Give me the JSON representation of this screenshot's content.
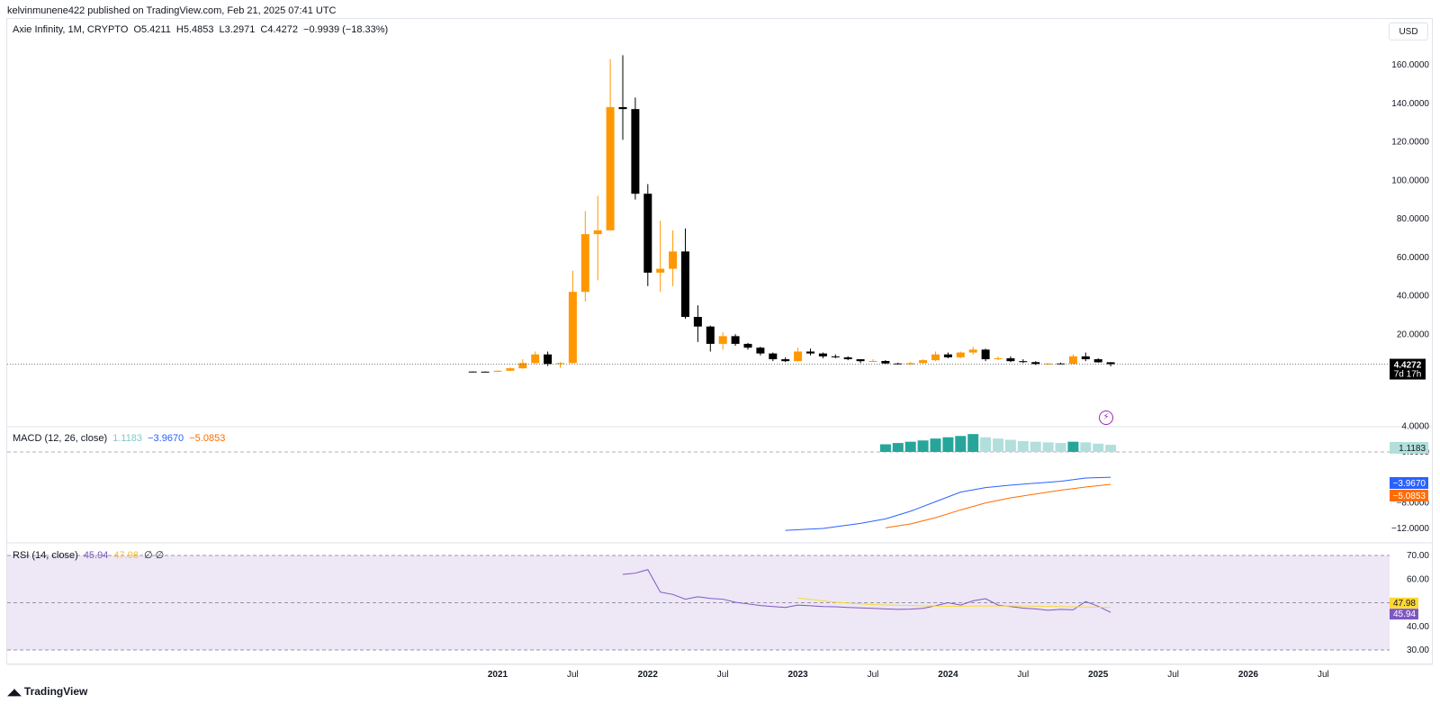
{
  "header": {
    "publisher_line": "kelvinmunene422 published on TradingView.com, Feb 21, 2025 07:41 UTC"
  },
  "legend": {
    "title": "Axie Infinity, 1M, CRYPTO",
    "open": "O5.4211",
    "high": "H5.4853",
    "low": "L3.2971",
    "close": "C4.4272",
    "change": "−0.9939 (−18.33%)"
  },
  "currency_button": "USD",
  "price_axis": {
    "ticks": [
      "160.0000",
      "140.0000",
      "120.0000",
      "100.0000",
      "80.0000",
      "60.0000",
      "40.0000",
      "20.0000"
    ],
    "last_price": "4.4272",
    "countdown": "7d 17h"
  },
  "macd": {
    "label": "MACD (12, 26, close)",
    "hist_value": "1.1183",
    "macd_value": "−3.9670",
    "signal_value": "−5.0853",
    "axis_ticks": [
      "4.0000",
      "0.0000",
      "−8.0000",
      "−12.0000"
    ]
  },
  "rsi": {
    "label": "RSI (14, close)",
    "rsi_value": "45.94",
    "ma_value": "47.98",
    "extra": "∅ ∅",
    "axis_ticks": [
      "70.00",
      "60.00",
      "40.00",
      "30.00"
    ]
  },
  "time_axis": [
    "2021",
    "Jul",
    "2022",
    "Jul",
    "2023",
    "Jul",
    "2024",
    "Jul",
    "2025",
    "Jul",
    "2026",
    "Jul"
  ],
  "footer": {
    "logo_text": "TradingView"
  },
  "colors": {
    "up": "#ff9800",
    "down": "#000000",
    "macd": "#2962ff",
    "signal": "#ff6d00",
    "hist_strong": "#26a69a",
    "hist_weak": "#b2dfdb",
    "rsi": "#7e57c2",
    "rsi_ma": "#fdd835",
    "rsi_band": "#ede7f6"
  },
  "chart_data": [
    {
      "type": "candlestick",
      "title": "Axie Infinity, 1M, CRYPTO",
      "ylim": [
        -10,
        170
      ],
      "candles": [
        {
          "t": "2020-11",
          "o": 0.6,
          "h": 0.7,
          "l": 0.5,
          "c": 0.55
        },
        {
          "t": "2020-12",
          "o": 0.55,
          "h": 0.65,
          "l": 0.45,
          "c": 0.5
        },
        {
          "t": "2021-01",
          "o": 0.5,
          "h": 1.2,
          "l": 0.45,
          "c": 1.0
        },
        {
          "t": "2021-02",
          "o": 1.0,
          "h": 2.8,
          "l": 0.9,
          "c": 2.3
        },
        {
          "t": "2021-03",
          "o": 2.3,
          "h": 7.0,
          "l": 2.0,
          "c": 5.0
        },
        {
          "t": "2021-04",
          "o": 5.0,
          "h": 11.0,
          "l": 4.5,
          "c": 9.5
        },
        {
          "t": "2021-05",
          "o": 9.5,
          "h": 11.0,
          "l": 3.5,
          "c": 4.5
        },
        {
          "t": "2021-06",
          "o": 4.5,
          "h": 5.5,
          "l": 2.5,
          "c": 5.0
        },
        {
          "t": "2021-07",
          "o": 5.0,
          "h": 53.0,
          "l": 4.8,
          "c": 42.0
        },
        {
          "t": "2021-08",
          "o": 42.0,
          "h": 84.0,
          "l": 37.0,
          "c": 72.0
        },
        {
          "t": "2021-09",
          "o": 72.0,
          "h": 92.0,
          "l": 48.0,
          "c": 74.0
        },
        {
          "t": "2021-10",
          "o": 74.0,
          "h": 163.0,
          "l": 74.0,
          "c": 138.0
        },
        {
          "t": "2021-11",
          "o": 138.0,
          "h": 165.0,
          "l": 121.0,
          "c": 137.0
        },
        {
          "t": "2021-12",
          "o": 137.0,
          "h": 143.0,
          "l": 90.0,
          "c": 93.0
        },
        {
          "t": "2022-01",
          "o": 93.0,
          "h": 98.0,
          "l": 45.0,
          "c": 52.0
        },
        {
          "t": "2022-02",
          "o": 52.0,
          "h": 79.0,
          "l": 42.0,
          "c": 54.0
        },
        {
          "t": "2022-03",
          "o": 54.0,
          "h": 74.0,
          "l": 45.0,
          "c": 63.0
        },
        {
          "t": "2022-04",
          "o": 63.0,
          "h": 75.0,
          "l": 28.0,
          "c": 29.0
        },
        {
          "t": "2022-05",
          "o": 29.0,
          "h": 35.0,
          "l": 16.0,
          "c": 24.0
        },
        {
          "t": "2022-06",
          "o": 24.0,
          "h": 24.5,
          "l": 11.0,
          "c": 15.0
        },
        {
          "t": "2022-07",
          "o": 15.0,
          "h": 21.0,
          "l": 12.0,
          "c": 19.0
        },
        {
          "t": "2022-08",
          "o": 19.0,
          "h": 20.0,
          "l": 14.0,
          "c": 15.0
        },
        {
          "t": "2022-09",
          "o": 15.0,
          "h": 15.5,
          "l": 12.0,
          "c": 13.0
        },
        {
          "t": "2022-10",
          "o": 13.0,
          "h": 13.5,
          "l": 9.0,
          "c": 10.0
        },
        {
          "t": "2022-11",
          "o": 10.0,
          "h": 10.5,
          "l": 6.0,
          "c": 7.0
        },
        {
          "t": "2022-12",
          "o": 7.0,
          "h": 8.0,
          "l": 5.5,
          "c": 6.0
        },
        {
          "t": "2023-01",
          "o": 6.0,
          "h": 13.0,
          "l": 5.8,
          "c": 11.0
        },
        {
          "t": "2023-02",
          "o": 11.0,
          "h": 12.5,
          "l": 9.0,
          "c": 10.0
        },
        {
          "t": "2023-03",
          "o": 10.0,
          "h": 10.5,
          "l": 7.5,
          "c": 8.5
        },
        {
          "t": "2023-04",
          "o": 8.5,
          "h": 9.5,
          "l": 7.5,
          "c": 8.0
        },
        {
          "t": "2023-05",
          "o": 8.0,
          "h": 8.5,
          "l": 6.5,
          "c": 7.0
        },
        {
          "t": "2023-06",
          "o": 7.0,
          "h": 7.0,
          "l": 5.0,
          "c": 6.0
        },
        {
          "t": "2023-07",
          "o": 6.0,
          "h": 7.0,
          "l": 5.5,
          "c": 6.1
        },
        {
          "t": "2023-08",
          "o": 6.1,
          "h": 6.5,
          "l": 4.5,
          "c": 4.8
        },
        {
          "t": "2023-09",
          "o": 4.8,
          "h": 5.2,
          "l": 4.2,
          "c": 4.4
        },
        {
          "t": "2023-10",
          "o": 4.4,
          "h": 5.5,
          "l": 4.1,
          "c": 5.0
        },
        {
          "t": "2023-11",
          "o": 5.0,
          "h": 7.0,
          "l": 4.8,
          "c": 6.5
        },
        {
          "t": "2023-12",
          "o": 6.5,
          "h": 11.0,
          "l": 6.0,
          "c": 9.5
        },
        {
          "t": "2024-01",
          "o": 9.5,
          "h": 10.5,
          "l": 7.5,
          "c": 8.0
        },
        {
          "t": "2024-02",
          "o": 8.0,
          "h": 11.0,
          "l": 7.5,
          "c": 10.5
        },
        {
          "t": "2024-03",
          "o": 10.5,
          "h": 13.5,
          "l": 9.5,
          "c": 12.0
        },
        {
          "t": "2024-04",
          "o": 12.0,
          "h": 12.5,
          "l": 6.0,
          "c": 7.0
        },
        {
          "t": "2024-05",
          "o": 7.0,
          "h": 8.5,
          "l": 6.5,
          "c": 7.5
        },
        {
          "t": "2024-06",
          "o": 7.5,
          "h": 8.5,
          "l": 5.5,
          "c": 6.0
        },
        {
          "t": "2024-07",
          "o": 6.0,
          "h": 7.0,
          "l": 5.0,
          "c": 5.5
        },
        {
          "t": "2024-08",
          "o": 5.5,
          "h": 6.0,
          "l": 4.0,
          "c": 4.5
        },
        {
          "t": "2024-09",
          "o": 4.5,
          "h": 5.0,
          "l": 4.2,
          "c": 4.8
        },
        {
          "t": "2024-10",
          "o": 4.8,
          "h": 5.2,
          "l": 4.3,
          "c": 4.6
        },
        {
          "t": "2024-11",
          "o": 4.6,
          "h": 9.5,
          "l": 4.4,
          "c": 8.5
        },
        {
          "t": "2024-12",
          "o": 8.5,
          "h": 10.5,
          "l": 6.0,
          "c": 7.0
        },
        {
          "t": "2025-01",
          "o": 7.0,
          "h": 7.5,
          "l": 5.2,
          "c": 5.4
        },
        {
          "t": "2025-02",
          "o": 5.4211,
          "h": 5.4853,
          "l": 3.2971,
          "c": 4.4272
        }
      ]
    },
    {
      "type": "bar+line",
      "title": "MACD (12, 26, close)",
      "ylim": [
        -13,
        5
      ],
      "histogram": {
        "t": [
          "2023-08",
          "2023-09",
          "2023-10",
          "2023-11",
          "2023-12",
          "2024-01",
          "2024-02",
          "2024-03",
          "2024-04",
          "2024-05",
          "2024-06",
          "2024-07",
          "2024-08",
          "2024-09",
          "2024-10",
          "2024-11",
          "2024-12",
          "2025-01",
          "2025-02"
        ],
        "values": [
          1.2,
          1.4,
          1.6,
          1.8,
          2.1,
          2.3,
          2.5,
          2.8,
          2.3,
          2.1,
          1.9,
          1.7,
          1.6,
          1.5,
          1.4,
          1.6,
          1.5,
          1.3,
          1.12
        ],
        "strong": [
          true,
          true,
          true,
          true,
          true,
          true,
          true,
          true,
          false,
          false,
          false,
          false,
          false,
          false,
          false,
          true,
          false,
          false,
          false
        ]
      },
      "series": [
        {
          "name": "MACD",
          "t": [
            "2022-12",
            "2023-03",
            "2023-06",
            "2023-08",
            "2023-10",
            "2023-12",
            "2024-02",
            "2024-04",
            "2024-06",
            "2024-08",
            "2024-10",
            "2024-12",
            "2025-02"
          ],
          "values": [
            -12.3,
            -12.0,
            -11.2,
            -10.5,
            -9.3,
            -7.8,
            -6.3,
            -5.6,
            -5.2,
            -4.9,
            -4.6,
            -4.1,
            -3.967
          ]
        },
        {
          "name": "Signal",
          "t": [
            "2023-08",
            "2023-10",
            "2023-12",
            "2024-02",
            "2024-04",
            "2024-06",
            "2024-08",
            "2024-10",
            "2024-12",
            "2025-02"
          ],
          "values": [
            -11.9,
            -11.3,
            -10.3,
            -9.1,
            -8.0,
            -7.2,
            -6.6,
            -6.0,
            -5.5,
            -5.085
          ]
        }
      ]
    },
    {
      "type": "line",
      "title": "RSI (14, close)",
      "ylim": [
        30,
        70
      ],
      "levels": [
        70,
        50,
        30
      ],
      "series": [
        {
          "name": "RSI",
          "t": [
            "2021-11",
            "2021-12",
            "2022-01",
            "2022-02",
            "2022-03",
            "2022-04",
            "2022-05",
            "2022-06",
            "2022-07",
            "2022-08",
            "2022-09",
            "2022-10",
            "2022-11",
            "2022-12",
            "2023-01",
            "2023-02",
            "2023-03",
            "2023-04",
            "2023-05",
            "2023-06",
            "2023-07",
            "2023-08",
            "2023-09",
            "2023-10",
            "2023-11",
            "2023-12",
            "2024-01",
            "2024-02",
            "2024-03",
            "2024-04",
            "2024-05",
            "2024-06",
            "2024-07",
            "2024-08",
            "2024-09",
            "2024-10",
            "2024-11",
            "2024-12",
            "2025-01",
            "2025-02"
          ],
          "values": [
            62.0,
            62.5,
            64.0,
            54.5,
            53.5,
            51.5,
            52.5,
            51.8,
            51.5,
            50.2,
            49.5,
            48.8,
            48.4,
            48.0,
            49.0,
            48.7,
            48.4,
            48.3,
            48.0,
            47.8,
            47.6,
            47.4,
            47.2,
            47.3,
            47.6,
            48.7,
            50.0,
            49.0,
            50.8,
            51.7,
            49.0,
            48.4,
            47.7,
            47.4,
            46.8,
            47.2,
            47.0,
            50.5,
            48.5,
            45.94
          ]
        },
        {
          "name": "RSI MA",
          "t": [
            "2023-01",
            "2023-04",
            "2023-07",
            "2023-10",
            "2024-01",
            "2024-04",
            "2024-07",
            "2024-10",
            "2025-01",
            "2025-02"
          ],
          "values": [
            52.0,
            50.2,
            49.2,
            48.8,
            48.5,
            48.6,
            48.6,
            48.4,
            48.1,
            47.98
          ]
        }
      ]
    }
  ]
}
